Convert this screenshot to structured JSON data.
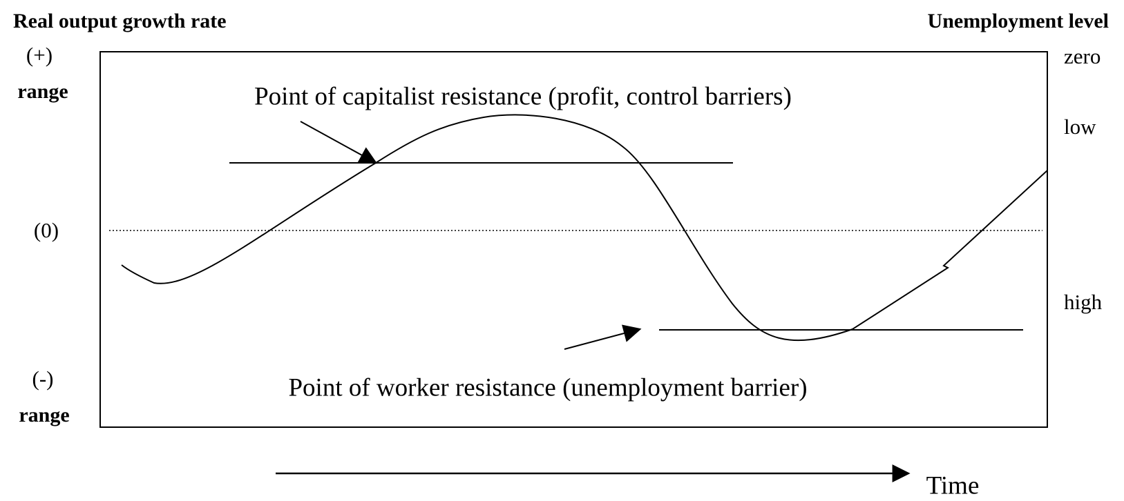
{
  "left_axis": {
    "title": "Real output growth rate",
    "top": "(+)",
    "top_range": "range",
    "middle": "(0)",
    "bottom": "(-)",
    "bottom_range": "range"
  },
  "right_axis": {
    "title": "Unemployment level",
    "levels": [
      "zero",
      "low",
      "high"
    ]
  },
  "annotations": {
    "capitalist": "Point of capitalist resistance (profit, control barriers)",
    "worker": "Point of worker resistance (unemployment barrier)"
  },
  "time_label": "Time"
}
